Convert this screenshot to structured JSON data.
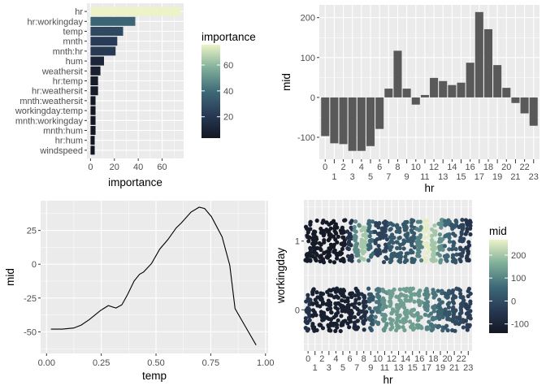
{
  "colors": {
    "panel_bg": "#EBEBEB",
    "grid": "#FFFFFF",
    "bar_fill": "#595959",
    "line": "#000000",
    "palette": [
      "#131722",
      "#283a55",
      "#3f6a78",
      "#80b09a",
      "#edf2c7"
    ]
  },
  "chart_data": [
    {
      "type": "bar",
      "orientation": "horizontal",
      "xlabel": "importance",
      "ylabel": "",
      "categories": [
        "hr",
        "hr:workingday",
        "temp",
        "mnth",
        "mnth:hr",
        "hum",
        "weathersit",
        "hr:temp",
        "hr:weathersit",
        "mnth:weathersit",
        "workingday:temp",
        "mnth:workingday",
        "mnth:hum",
        "hr:hum",
        "windspeed"
      ],
      "values": [
        75.7,
        37.5,
        27.3,
        22.4,
        21.0,
        11.3,
        8.3,
        6.3,
        6.3,
        4.2,
        4.2,
        4.2,
        4.2,
        3.5,
        3.5
      ],
      "xticks": [
        0,
        20,
        40,
        60
      ],
      "xlim": [
        -3,
        78
      ],
      "legend": {
        "title": "importance",
        "ticks": [
          20,
          40,
          60
        ],
        "range": [
          3.5,
          75.7
        ],
        "placement": "right"
      }
    },
    {
      "type": "bar",
      "xlabel": "hr",
      "ylabel": "mid",
      "categories": [
        "0",
        "1",
        "2",
        "3",
        "4",
        "5",
        "6",
        "7",
        "8",
        "9",
        "10",
        "11",
        "12",
        "13",
        "14",
        "15",
        "16",
        "17",
        "18",
        "19",
        "20",
        "21",
        "22",
        "23"
      ],
      "values": [
        -97,
        -115,
        -117,
        -134,
        -134,
        -122,
        -79,
        22,
        117,
        22,
        -18,
        6,
        49,
        41,
        31,
        37,
        87,
        214,
        171,
        81,
        24,
        -14,
        -40,
        -71
      ],
      "yticks": [
        -100,
        0,
        100,
        200
      ],
      "ylim": [
        -155,
        232
      ]
    },
    {
      "type": "line",
      "xlabel": "temp",
      "ylabel": "mid",
      "x": [
        0.02,
        0.072,
        0.124,
        0.158,
        0.195,
        0.245,
        0.282,
        0.317,
        0.344,
        0.369,
        0.4,
        0.425,
        0.443,
        0.48,
        0.517,
        0.554,
        0.592,
        0.616,
        0.66,
        0.697,
        0.722,
        0.753,
        0.802,
        0.837,
        0.861,
        0.907,
        0.957
      ],
      "y": [
        -48,
        -48,
        -47.2,
        -45,
        -41,
        -34.4,
        -30.6,
        -32.4,
        -30,
        -22.8,
        -12.4,
        -7.4,
        -5.8,
        0.6,
        11.2,
        18.2,
        26.8,
        30.6,
        38.6,
        42.2,
        41.2,
        35.2,
        20.2,
        -0.8,
        -32.8,
        -45.8,
        -59.8
      ],
      "xticks": [
        "0.00",
        "0.25",
        "0.50",
        "0.75",
        "1.00"
      ],
      "yticks": [
        "-50",
        "-25",
        "0",
        "25"
      ],
      "xlim": [
        -0.027,
        1.012
      ],
      "ylim": [
        -66,
        47
      ]
    },
    {
      "type": "scatter",
      "subtype": "jitter",
      "xlabel": "hr",
      "ylabel": "workingday",
      "color_by": "mid",
      "categories": [
        "0",
        "1",
        "2",
        "3",
        "4",
        "5",
        "6",
        "7",
        "8",
        "9",
        "10",
        "11",
        "12",
        "13",
        "14",
        "15",
        "16",
        "17",
        "18",
        "19",
        "20",
        "21",
        "22",
        "23"
      ],
      "yticks": [
        "0",
        "1"
      ],
      "ylim": [
        -0.6,
        1.6
      ],
      "series": [
        {
          "workingday": 1,
          "mid": [
            -125,
            -130,
            -132,
            -135,
            -135,
            -125,
            -60,
            110,
            200,
            60,
            -20,
            -20,
            30,
            30,
            25,
            30,
            100,
            260,
            200,
            120,
            60,
            20,
            -20,
            -60
          ]
        },
        {
          "workingday": 0,
          "mid": [
            -60,
            -110,
            -110,
            -115,
            -115,
            -115,
            -110,
            -95,
            -70,
            20,
            80,
            120,
            140,
            140,
            140,
            140,
            130,
            100,
            80,
            50,
            20,
            0,
            -10,
            -30
          ]
        }
      ],
      "legend": {
        "title": "mid",
        "ticks": [
          -100,
          0,
          100,
          200
        ],
        "range": [
          -140,
          267
        ],
        "placement": "right"
      }
    }
  ]
}
